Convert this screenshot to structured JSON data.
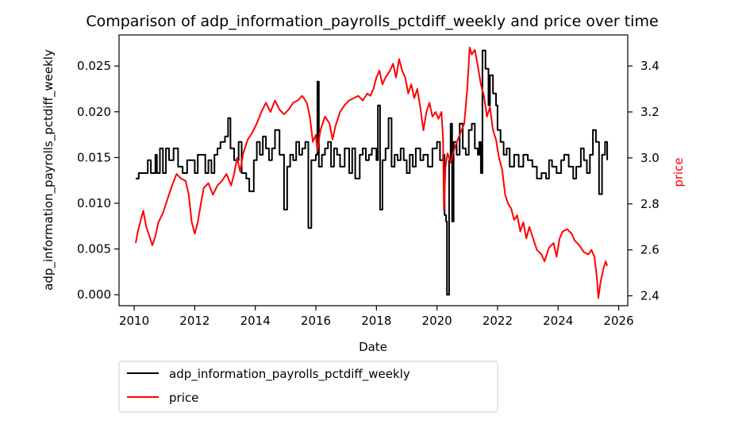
{
  "chart_data": {
    "type": "line",
    "title": "Comparison of adp_information_payrolls_pctdiff_weekly and price over time",
    "xlabel": "Date",
    "ylabel_left": "adp_information_payrolls_pctdiff_weekly",
    "ylabel_right": "price",
    "xlim": [
      2009.5,
      2026.3
    ],
    "ylim_left": [
      -0.0012,
      0.0284
    ],
    "ylim_right": [
      2.357,
      3.535
    ],
    "x_ticks": [
      2010,
      2012,
      2014,
      2016,
      2018,
      2020,
      2022,
      2024,
      2026
    ],
    "x_tick_labels": [
      "2010",
      "2012",
      "2014",
      "2016",
      "2018",
      "2020",
      "2022",
      "2024",
      "2026"
    ],
    "y_ticks_left": [
      0.0,
      0.005,
      0.01,
      0.015,
      0.02,
      0.025
    ],
    "y_tick_labels_left": [
      "0.000",
      "0.005",
      "0.010",
      "0.015",
      "0.020",
      "0.025"
    ],
    "y_ticks_right": [
      2.4,
      2.6,
      2.8,
      3.0,
      3.2,
      3.4
    ],
    "y_tick_labels_right": [
      "2.4",
      "2.6",
      "2.8",
      "3.0",
      "3.2",
      "3.4"
    ],
    "grid": false,
    "legend_position": "below the plot, left",
    "series": [
      {
        "name": "adp_information_payrolls_pctdiff_weekly",
        "color": "#000000",
        "axis": "left",
        "step": true,
        "points": [
          [
            2010.05,
            0.0127
          ],
          [
            2010.15,
            0.0133
          ],
          [
            2010.45,
            0.0147
          ],
          [
            2010.55,
            0.0133
          ],
          [
            2010.7,
            0.0153
          ],
          [
            2010.75,
            0.0133
          ],
          [
            2010.85,
            0.016
          ],
          [
            2010.95,
            0.0133
          ],
          [
            2011.05,
            0.016
          ],
          [
            2011.15,
            0.0147
          ],
          [
            2011.3,
            0.016
          ],
          [
            2011.45,
            0.014
          ],
          [
            2011.6,
            0.0133
          ],
          [
            2011.75,
            0.0147
          ],
          [
            2011.9,
            0.0147
          ],
          [
            2012.0,
            0.0133
          ],
          [
            2012.1,
            0.0153
          ],
          [
            2012.35,
            0.0133
          ],
          [
            2012.45,
            0.0147
          ],
          [
            2012.55,
            0.0133
          ],
          [
            2012.65,
            0.0153
          ],
          [
            2012.75,
            0.016
          ],
          [
            2012.85,
            0.0167
          ],
          [
            2013.0,
            0.0173
          ],
          [
            2013.1,
            0.0193
          ],
          [
            2013.18,
            0.016
          ],
          [
            2013.3,
            0.0147
          ],
          [
            2013.45,
            0.0167
          ],
          [
            2013.55,
            0.0133
          ],
          [
            2013.7,
            0.0127
          ],
          [
            2013.8,
            0.0113
          ],
          [
            2013.95,
            0.0147
          ],
          [
            2014.05,
            0.0167
          ],
          [
            2014.15,
            0.0153
          ],
          [
            2014.25,
            0.0173
          ],
          [
            2014.35,
            0.016
          ],
          [
            2014.45,
            0.0147
          ],
          [
            2014.55,
            0.016
          ],
          [
            2014.65,
            0.018
          ],
          [
            2014.8,
            0.0153
          ],
          [
            2014.95,
            0.0093
          ],
          [
            2015.05,
            0.014
          ],
          [
            2015.15,
            0.0153
          ],
          [
            2015.25,
            0.0147
          ],
          [
            2015.35,
            0.0167
          ],
          [
            2015.45,
            0.0153
          ],
          [
            2015.55,
            0.016
          ],
          [
            2015.65,
            0.0167
          ],
          [
            2015.75,
            0.0073
          ],
          [
            2015.85,
            0.0147
          ],
          [
            2016.0,
            0.0153
          ],
          [
            2016.05,
            0.0233
          ],
          [
            2016.1,
            0.014
          ],
          [
            2016.2,
            0.0153
          ],
          [
            2016.3,
            0.016
          ],
          [
            2016.4,
            0.0167
          ],
          [
            2016.5,
            0.014
          ],
          [
            2016.6,
            0.016
          ],
          [
            2016.7,
            0.0153
          ],
          [
            2016.8,
            0.014
          ],
          [
            2016.95,
            0.016
          ],
          [
            2017.1,
            0.0133
          ],
          [
            2017.2,
            0.016
          ],
          [
            2017.3,
            0.0127
          ],
          [
            2017.45,
            0.0153
          ],
          [
            2017.55,
            0.016
          ],
          [
            2017.65,
            0.0147
          ],
          [
            2017.75,
            0.0153
          ],
          [
            2017.85,
            0.016
          ],
          [
            2018.0,
            0.0147
          ],
          [
            2018.05,
            0.0207
          ],
          [
            2018.12,
            0.0093
          ],
          [
            2018.2,
            0.0147
          ],
          [
            2018.3,
            0.016
          ],
          [
            2018.4,
            0.0193
          ],
          [
            2018.5,
            0.014
          ],
          [
            2018.6,
            0.0153
          ],
          [
            2018.7,
            0.0147
          ],
          [
            2018.8,
            0.016
          ],
          [
            2018.9,
            0.0147
          ],
          [
            2019.0,
            0.0133
          ],
          [
            2019.1,
            0.0153
          ],
          [
            2019.2,
            0.014
          ],
          [
            2019.3,
            0.016
          ],
          [
            2019.45,
            0.0147
          ],
          [
            2019.55,
            0.0153
          ],
          [
            2019.7,
            0.014
          ],
          [
            2019.85,
            0.016
          ],
          [
            2020.0,
            0.0167
          ],
          [
            2020.1,
            0.0147
          ],
          [
            2020.2,
            0.0153
          ],
          [
            2020.25,
            0.0087
          ],
          [
            2020.3,
            0.008
          ],
          [
            2020.33,
            0.0
          ],
          [
            2020.4,
            0.0147
          ],
          [
            2020.45,
            0.0187
          ],
          [
            2020.5,
            0.008
          ],
          [
            2020.55,
            0.0167
          ],
          [
            2020.65,
            0.0153
          ],
          [
            2020.75,
            0.0187
          ],
          [
            2020.85,
            0.016
          ],
          [
            2020.95,
            0.0153
          ],
          [
            2021.05,
            0.018
          ],
          [
            2021.15,
            0.0187
          ],
          [
            2021.25,
            0.016
          ],
          [
            2021.35,
            0.0153
          ],
          [
            2021.4,
            0.0167
          ],
          [
            2021.45,
            0.0133
          ],
          [
            2021.5,
            0.0267
          ],
          [
            2021.6,
            0.0247
          ],
          [
            2021.7,
            0.0207
          ],
          [
            2021.75,
            0.024
          ],
          [
            2021.85,
            0.022
          ],
          [
            2021.95,
            0.0207
          ],
          [
            2022.0,
            0.018
          ],
          [
            2022.1,
            0.0167
          ],
          [
            2022.2,
            0.0153
          ],
          [
            2022.3,
            0.016
          ],
          [
            2022.4,
            0.014
          ],
          [
            2022.55,
            0.0153
          ],
          [
            2022.7,
            0.014
          ],
          [
            2022.85,
            0.0153
          ],
          [
            2023.0,
            0.0147
          ],
          [
            2023.15,
            0.014
          ],
          [
            2023.3,
            0.0127
          ],
          [
            2023.45,
            0.0133
          ],
          [
            2023.6,
            0.0127
          ],
          [
            2023.7,
            0.0147
          ],
          [
            2023.8,
            0.014
          ],
          [
            2023.95,
            0.0133
          ],
          [
            2024.1,
            0.0147
          ],
          [
            2024.2,
            0.0153
          ],
          [
            2024.35,
            0.014
          ],
          [
            2024.5,
            0.0127
          ],
          [
            2024.6,
            0.014
          ],
          [
            2024.75,
            0.016
          ],
          [
            2024.85,
            0.0147
          ],
          [
            2024.95,
            0.0133
          ],
          [
            2025.05,
            0.0153
          ],
          [
            2025.15,
            0.018
          ],
          [
            2025.25,
            0.0167
          ],
          [
            2025.35,
            0.011
          ],
          [
            2025.45,
            0.0153
          ],
          [
            2025.55,
            0.0167
          ],
          [
            2025.62,
            0.0147
          ]
        ]
      },
      {
        "name": "price",
        "color": "#ff0000",
        "axis": "right",
        "step": false,
        "points": [
          [
            2010.05,
            2.63
          ],
          [
            2010.12,
            2.68
          ],
          [
            2010.2,
            2.72
          ],
          [
            2010.3,
            2.77
          ],
          [
            2010.4,
            2.7
          ],
          [
            2010.5,
            2.66
          ],
          [
            2010.6,
            2.62
          ],
          [
            2010.7,
            2.66
          ],
          [
            2010.8,
            2.72
          ],
          [
            2010.95,
            2.76
          ],
          [
            2011.1,
            2.82
          ],
          [
            2011.25,
            2.88
          ],
          [
            2011.4,
            2.93
          ],
          [
            2011.55,
            2.91
          ],
          [
            2011.7,
            2.9
          ],
          [
            2011.8,
            2.84
          ],
          [
            2011.9,
            2.72
          ],
          [
            2012.0,
            2.67
          ],
          [
            2012.1,
            2.72
          ],
          [
            2012.2,
            2.8
          ],
          [
            2012.3,
            2.87
          ],
          [
            2012.45,
            2.89
          ],
          [
            2012.6,
            2.84
          ],
          [
            2012.75,
            2.88
          ],
          [
            2012.9,
            2.9
          ],
          [
            2013.05,
            2.93
          ],
          [
            2013.2,
            2.88
          ],
          [
            2013.3,
            2.93
          ],
          [
            2013.4,
            3.0
          ],
          [
            2013.5,
            2.94
          ],
          [
            2013.6,
            3.02
          ],
          [
            2013.75,
            3.08
          ],
          [
            2013.9,
            3.11
          ],
          [
            2014.05,
            3.15
          ],
          [
            2014.2,
            3.2
          ],
          [
            2014.35,
            3.24
          ],
          [
            2014.5,
            3.2
          ],
          [
            2014.65,
            3.25
          ],
          [
            2014.8,
            3.21
          ],
          [
            2014.95,
            3.19
          ],
          [
            2015.1,
            3.21
          ],
          [
            2015.25,
            3.24
          ],
          [
            2015.4,
            3.25
          ],
          [
            2015.55,
            3.27
          ],
          [
            2015.7,
            3.24
          ],
          [
            2015.8,
            3.18
          ],
          [
            2015.9,
            3.07
          ],
          [
            2016.0,
            3.1
          ],
          [
            2016.05,
            3.03
          ],
          [
            2016.15,
            3.12
          ],
          [
            2016.3,
            3.18
          ],
          [
            2016.45,
            3.15
          ],
          [
            2016.55,
            3.08
          ],
          [
            2016.65,
            3.14
          ],
          [
            2016.8,
            3.2
          ],
          [
            2016.95,
            3.23
          ],
          [
            2017.1,
            3.25
          ],
          [
            2017.25,
            3.26
          ],
          [
            2017.4,
            3.27
          ],
          [
            2017.55,
            3.25
          ],
          [
            2017.7,
            3.28
          ],
          [
            2017.8,
            3.27
          ],
          [
            2017.9,
            3.3
          ],
          [
            2018.0,
            3.35
          ],
          [
            2018.1,
            3.38
          ],
          [
            2018.2,
            3.32
          ],
          [
            2018.3,
            3.35
          ],
          [
            2018.45,
            3.38
          ],
          [
            2018.55,
            3.41
          ],
          [
            2018.65,
            3.35
          ],
          [
            2018.75,
            3.43
          ],
          [
            2018.85,
            3.38
          ],
          [
            2018.95,
            3.35
          ],
          [
            2019.05,
            3.28
          ],
          [
            2019.15,
            3.32
          ],
          [
            2019.25,
            3.26
          ],
          [
            2019.35,
            3.3
          ],
          [
            2019.45,
            3.22
          ],
          [
            2019.55,
            3.12
          ],
          [
            2019.65,
            3.2
          ],
          [
            2019.75,
            3.24
          ],
          [
            2019.85,
            3.18
          ],
          [
            2019.95,
            3.2
          ],
          [
            2020.05,
            3.17
          ],
          [
            2020.15,
            3.2
          ],
          [
            2020.2,
            3.08
          ],
          [
            2020.23,
            2.77
          ],
          [
            2020.28,
            2.96
          ],
          [
            2020.35,
            3.02
          ],
          [
            2020.45,
            2.98
          ],
          [
            2020.6,
            3.05
          ],
          [
            2020.75,
            3.1
          ],
          [
            2020.9,
            3.15
          ],
          [
            2021.0,
            3.3
          ],
          [
            2021.08,
            3.48
          ],
          [
            2021.15,
            3.45
          ],
          [
            2021.25,
            3.47
          ],
          [
            2021.35,
            3.4
          ],
          [
            2021.45,
            3.32
          ],
          [
            2021.55,
            3.27
          ],
          [
            2021.65,
            3.18
          ],
          [
            2021.75,
            3.22
          ],
          [
            2021.85,
            3.12
          ],
          [
            2021.95,
            3.08
          ],
          [
            2022.05,
            3.0
          ],
          [
            2022.15,
            2.95
          ],
          [
            2022.25,
            2.84
          ],
          [
            2022.35,
            2.8
          ],
          [
            2022.45,
            2.78
          ],
          [
            2022.55,
            2.73
          ],
          [
            2022.65,
            2.75
          ],
          [
            2022.75,
            2.68
          ],
          [
            2022.85,
            2.72
          ],
          [
            2022.95,
            2.65
          ],
          [
            2023.05,
            2.7
          ],
          [
            2023.15,
            2.66
          ],
          [
            2023.3,
            2.6
          ],
          [
            2023.45,
            2.58
          ],
          [
            2023.55,
            2.55
          ],
          [
            2023.7,
            2.61
          ],
          [
            2023.85,
            2.63
          ],
          [
            2023.95,
            2.57
          ],
          [
            2024.05,
            2.65
          ],
          [
            2024.15,
            2.68
          ],
          [
            2024.3,
            2.69
          ],
          [
            2024.45,
            2.67
          ],
          [
            2024.55,
            2.64
          ],
          [
            2024.7,
            2.62
          ],
          [
            2024.85,
            2.59
          ],
          [
            2025.0,
            2.58
          ],
          [
            2025.1,
            2.6
          ],
          [
            2025.2,
            2.57
          ],
          [
            2025.28,
            2.48
          ],
          [
            2025.33,
            2.39
          ],
          [
            2025.4,
            2.46
          ],
          [
            2025.5,
            2.52
          ],
          [
            2025.57,
            2.55
          ],
          [
            2025.62,
            2.53
          ]
        ]
      }
    ]
  }
}
